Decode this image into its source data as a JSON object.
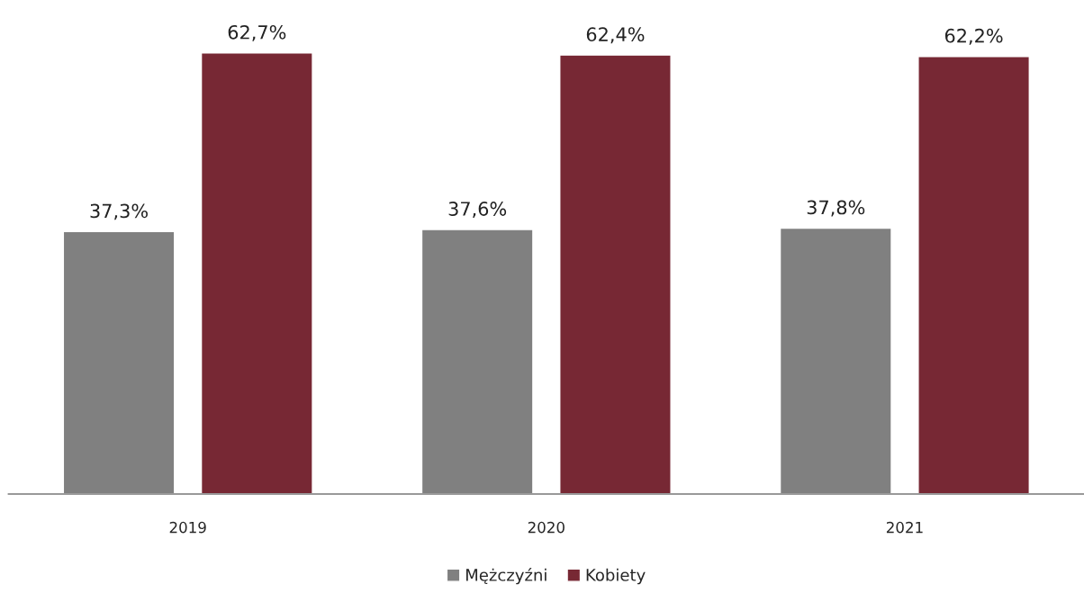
{
  "chart_data": {
    "type": "bar",
    "categories": [
      "2019",
      "2020",
      "2021"
    ],
    "series": [
      {
        "name": "Mężczyźni",
        "color": "#808080",
        "values": [
          37.3,
          37.6,
          37.8
        ],
        "value_labels": [
          "37,3%",
          "37,6%",
          "37,8%"
        ]
      },
      {
        "name": "Kobiety",
        "color": "#772834",
        "values": [
          62.7,
          62.4,
          62.2
        ],
        "value_labels": [
          "62,7%",
          "62,4%",
          "62,2%"
        ]
      }
    ],
    "tick_labels": "x",
    "grid": false,
    "legend": "bottom"
  }
}
